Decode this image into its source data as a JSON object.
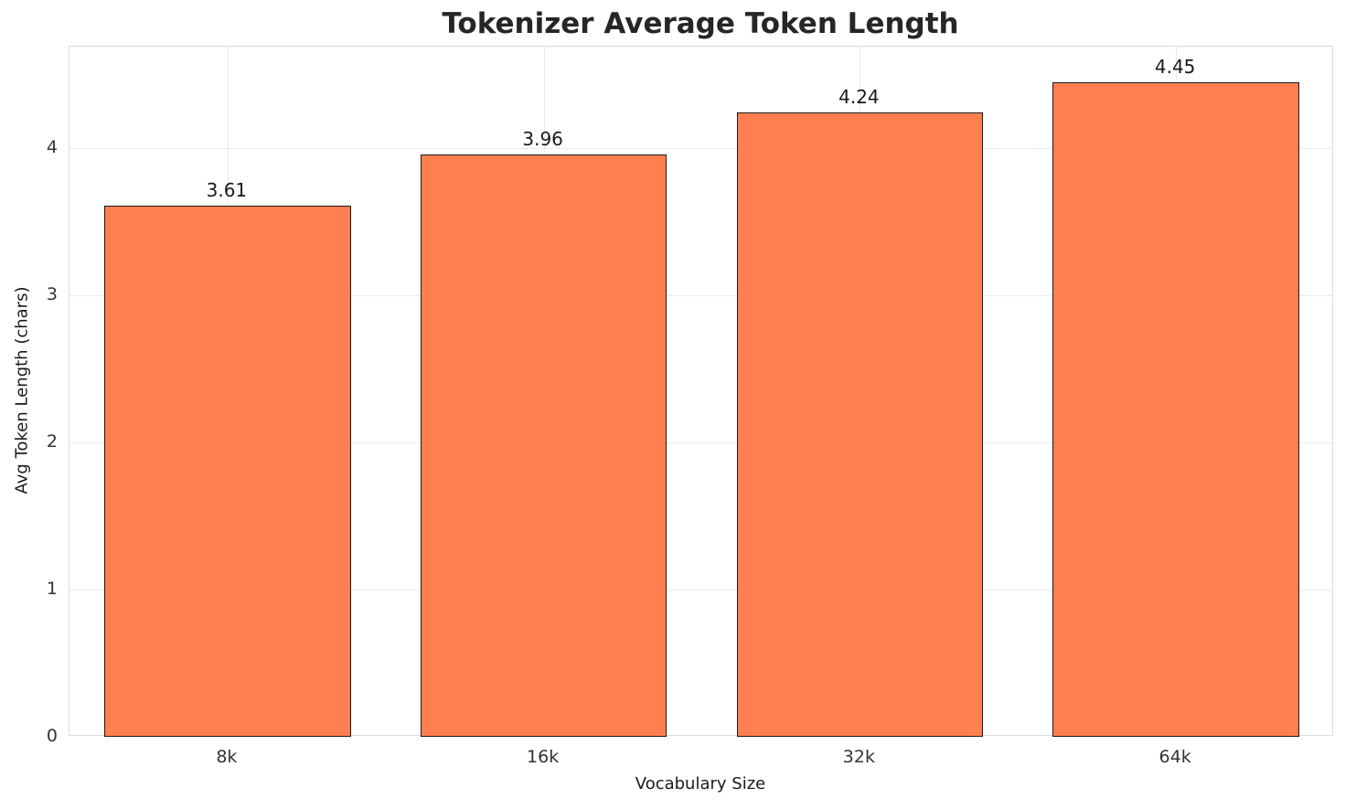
{
  "chart_data": {
    "type": "bar",
    "title": "Tokenizer Average Token Length",
    "xlabel": "Vocabulary Size",
    "ylabel": "Avg Token Length (chars)",
    "categories": [
      "8k",
      "16k",
      "32k",
      "64k"
    ],
    "values": [
      3.61,
      3.96,
      4.24,
      4.45
    ],
    "value_labels": [
      "3.61",
      "3.96",
      "4.24",
      "4.45"
    ],
    "ylim": [
      0,
      4.69
    ],
    "yticks": [
      0,
      1,
      2,
      3,
      4
    ],
    "grid": true,
    "legend": "none",
    "bar_color": "#FF7F50",
    "bar_edge_color": "#1a1a1a",
    "grid_color": "#ebebeb",
    "title_color": "#262626",
    "tick_color": "#333333"
  }
}
